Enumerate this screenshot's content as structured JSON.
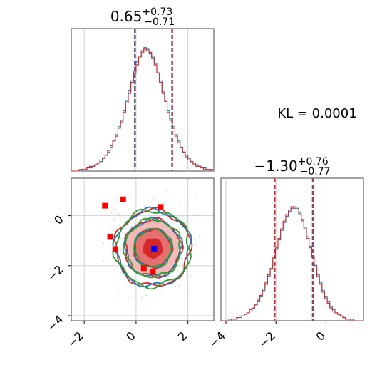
{
  "chart_data": [
    {
      "type": "histogram",
      "panel": "marginal-param-1",
      "title": {
        "main": "0.65",
        "plus": "+0.73",
        "minus": "−0.71"
      },
      "median": 0.65,
      "quantiles": [
        -0.06,
        1.38
      ],
      "xlim": [
        -2.5,
        3.0
      ],
      "series": [
        {
          "color": "#1f77b4",
          "values": [
            0,
            0,
            0,
            0,
            1,
            1,
            2,
            2,
            3,
            4,
            5,
            6,
            8,
            10,
            12,
            15,
            19,
            23,
            28,
            32,
            38,
            44,
            51,
            57,
            63,
            69,
            72,
            76,
            78,
            77,
            74,
            72,
            68,
            62,
            57,
            50,
            44,
            38,
            33,
            28,
            23,
            19,
            15,
            12,
            10,
            8,
            6,
            5,
            4,
            3,
            2,
            2,
            1,
            1,
            1
          ]
        },
        {
          "color": "#d62728",
          "values": [
            0,
            0,
            0,
            1,
            1,
            1,
            2,
            3,
            3,
            4,
            5,
            7,
            8,
            10,
            13,
            16,
            19,
            22,
            27,
            31,
            37,
            43,
            49,
            56,
            62,
            67,
            72,
            75,
            77,
            76,
            75,
            71,
            67,
            62,
            56,
            49,
            44,
            37,
            32,
            27,
            22,
            18,
            15,
            12,
            9,
            7,
            6,
            4,
            3,
            3,
            2,
            1,
            1,
            1,
            0
          ]
        }
      ],
      "series_scale_max": 90
    },
    {
      "type": "contour",
      "panel": "joint",
      "xlim": [
        -2.5,
        3.0
      ],
      "ylim": [
        -4.2,
        1.5
      ],
      "x_ticks": [
        "−2",
        "0",
        "2"
      ],
      "y_ticks": [
        "0",
        "−2",
        "−4"
      ],
      "center": [
        0.65,
        -1.3
      ],
      "sigma": [
        0.72,
        0.76
      ],
      "filled_levels": [
        0.5,
        1.0,
        1.5
      ],
      "filled_colors": [
        "#f3b9b9",
        "#e67070",
        "#d62728"
      ],
      "contour_series": [
        {
          "color": "#d62728",
          "levels": [
            0.5,
            1.0,
            1.5,
            2.0
          ]
        },
        {
          "color": "#1f77b4",
          "levels": [
            1.0,
            1.5,
            2.0
          ]
        },
        {
          "color": "#2ca02c",
          "levels": [
            1.0,
            1.5,
            2.0
          ]
        }
      ],
      "red_squares": [
        [
          -1.2,
          0.4
        ],
        [
          -0.5,
          0.65
        ],
        [
          -1.0,
          -0.85
        ],
        [
          -0.8,
          -1.35
        ],
        [
          0.95,
          0.35
        ],
        [
          0.3,
          -2.1
        ],
        [
          0.65,
          -2.25
        ]
      ],
      "blue_square": [
        0.7,
        -1.32
      ]
    },
    {
      "type": "histogram",
      "panel": "marginal-param-2",
      "title": {
        "main": "−1.30",
        "plus": "+0.76",
        "minus": "−0.77"
      },
      "median": -1.3,
      "quantiles": [
        -2.07,
        -0.54
      ],
      "xlim": [
        -4.2,
        1.5
      ],
      "x_ticks": [
        "−4",
        "−2",
        "0"
      ],
      "series": [
        {
          "color": "#1f77b4",
          "values": [
            0,
            0,
            0,
            0,
            1,
            1,
            2,
            2,
            3,
            4,
            5,
            6,
            8,
            10,
            12,
            15,
            19,
            23,
            28,
            33,
            39,
            45,
            51,
            57,
            62,
            66,
            69,
            71,
            72,
            71,
            68,
            64,
            59,
            53,
            47,
            41,
            35,
            29,
            24,
            19,
            15,
            12,
            9,
            7,
            5,
            4,
            3,
            2,
            1,
            1,
            1,
            0,
            0,
            0,
            0
          ]
        },
        {
          "color": "#d62728",
          "values": [
            0,
            0,
            0,
            1,
            1,
            1,
            2,
            3,
            3,
            4,
            5,
            7,
            8,
            10,
            13,
            16,
            20,
            24,
            29,
            33,
            40,
            46,
            52,
            58,
            63,
            67,
            70,
            72,
            71,
            70,
            67,
            63,
            58,
            52,
            46,
            40,
            34,
            28,
            23,
            18,
            14,
            11,
            8,
            6,
            5,
            4,
            3,
            2,
            1,
            1,
            0,
            0,
            0,
            0,
            0
          ]
        }
      ],
      "series_scale_max": 90
    }
  ],
  "kl_label": "KL = 0.0001"
}
